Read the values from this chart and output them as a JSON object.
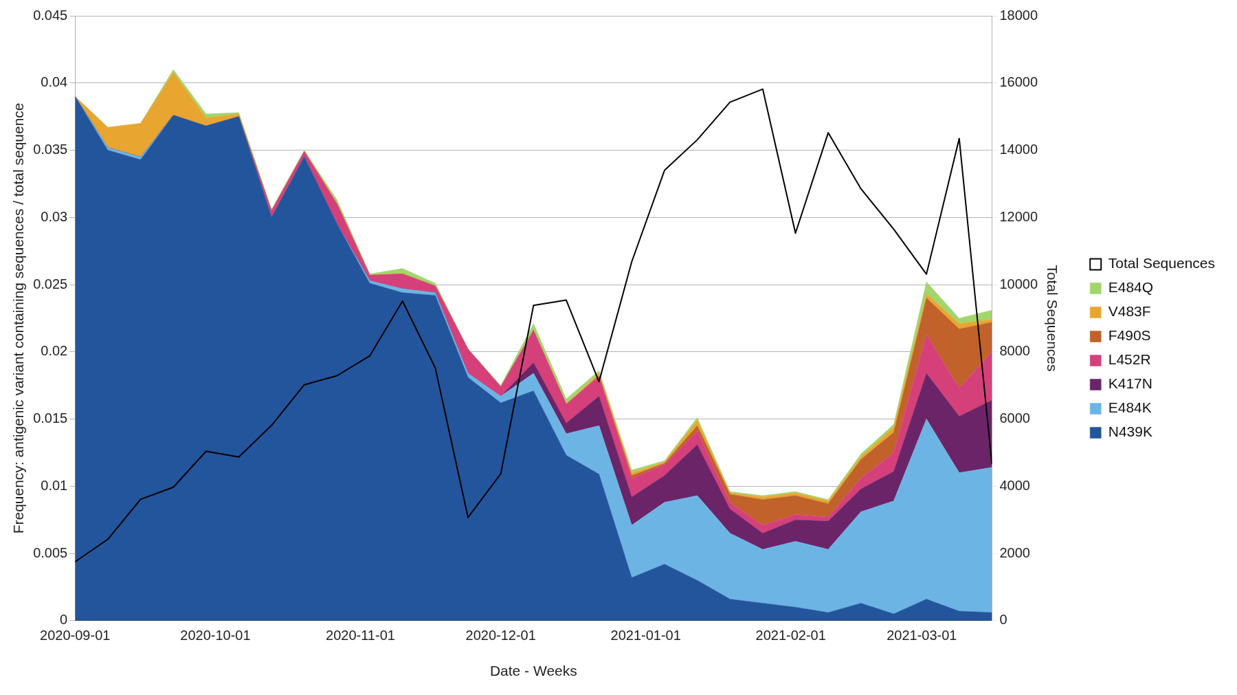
{
  "chart_data": {
    "type": "area",
    "stacked": true,
    "xlabel": "Date - Weeks",
    "ylabel": "Frequency: antigenic variant containing sequences / total sequence",
    "y2label": "Total Sequences",
    "x": [
      "2020-09-01",
      "2020-09-08",
      "2020-09-15",
      "2020-09-22",
      "2020-09-29",
      "2020-10-06",
      "2020-10-13",
      "2020-10-20",
      "2020-10-27",
      "2020-11-03",
      "2020-11-10",
      "2020-11-17",
      "2020-11-24",
      "2020-12-01",
      "2020-12-08",
      "2020-12-15",
      "2020-12-22",
      "2020-12-29",
      "2021-01-05",
      "2021-01-12",
      "2021-01-19",
      "2021-01-26",
      "2021-02-02",
      "2021-02-09",
      "2021-02-16",
      "2021-02-23",
      "2021-03-02",
      "2021-03-09",
      "2021-03-16"
    ],
    "xlim": [
      "2020-09-01",
      "2021-03-16"
    ],
    "xticks": [
      "2020-09-01",
      "2020-10-01",
      "2020-11-01",
      "2020-12-01",
      "2021-01-01",
      "2021-02-01",
      "2021-03-01"
    ],
    "ylim": [
      0,
      0.045
    ],
    "yticks": [
      0,
      0.005,
      0.01,
      0.015,
      0.02,
      0.025,
      0.03,
      0.035,
      0.04,
      0.045
    ],
    "y2lim": [
      0,
      18000
    ],
    "y2ticks": [
      0,
      2000,
      4000,
      6000,
      8000,
      10000,
      12000,
      14000,
      16000,
      18000
    ],
    "grid": "y",
    "legend": "right",
    "series": [
      {
        "name": "N439K",
        "color": "#23559c",
        "values": [
          0.039,
          0.035,
          0.0343,
          0.0376,
          0.0368,
          0.0375,
          0.03,
          0.0345,
          0.0295,
          0.0251,
          0.0244,
          0.0242,
          0.0181,
          0.0162,
          0.0171,
          0.0123,
          0.0109,
          0.0032,
          0.0042,
          0.003,
          0.0016,
          0.0013,
          0.001,
          0.0006,
          0.0013,
          0.0005,
          0.0016,
          0.0007,
          0.0006
        ]
      },
      {
        "name": "E484K",
        "color": "#6cb4e4",
        "values": [
          0,
          0.0002,
          0.0002,
          0,
          0,
          0,
          0,
          0,
          0,
          0.0002,
          0.0003,
          0.0002,
          0.0003,
          0.0005,
          0.0013,
          0.0016,
          0.0036,
          0.0039,
          0.0046,
          0.0063,
          0.0049,
          0.004,
          0.0049,
          0.0047,
          0.0068,
          0.0084,
          0.0134,
          0.0103,
          0.0108
        ]
      },
      {
        "name": "K417N",
        "color": "#6b2468",
        "values": [
          0,
          0,
          0,
          0,
          0,
          0,
          0,
          0,
          0,
          0,
          0,
          0,
          0,
          0,
          0.0008,
          0.0008,
          0.0022,
          0.0021,
          0.002,
          0.0038,
          0.0018,
          0.0012,
          0.0016,
          0.0021,
          0.0017,
          0.0022,
          0.0034,
          0.0042,
          0.005
        ]
      },
      {
        "name": "L452R",
        "color": "#d6407a",
        "values": [
          0,
          0,
          0,
          0,
          0,
          0,
          0.0005,
          0.0004,
          0.0015,
          0.0004,
          0.0011,
          0.0005,
          0.0018,
          0.0007,
          0.0024,
          0.0014,
          0.0015,
          0.0014,
          0.0008,
          0.001,
          0.0005,
          0.0006,
          0.0004,
          0.0003,
          0.0008,
          0.0014,
          0.0029,
          0.0021,
          0.0036
        ]
      },
      {
        "name": "F490S",
        "color": "#c0622a",
        "values": [
          0,
          0,
          0,
          0,
          0,
          0,
          0,
          0,
          0,
          0,
          0,
          0,
          0,
          0,
          0,
          0,
          0,
          0.0002,
          0.0001,
          0.0004,
          0.0006,
          0.0019,
          0.0014,
          0.001,
          0.0014,
          0.0015,
          0.0027,
          0.0044,
          0.0022
        ]
      },
      {
        "name": "V483F",
        "color": "#e8a630",
        "values": [
          0,
          0.0015,
          0.0025,
          0.0032,
          0.0006,
          0.0002,
          0,
          0,
          0,
          0,
          0,
          0,
          0,
          0,
          0,
          0,
          0.0002,
          0.0002,
          0.0001,
          0.0004,
          0.0001,
          0.0002,
          0.0002,
          0.0002,
          0.0002,
          0.0004,
          0.0003,
          0.0004,
          0.0002
        ]
      },
      {
        "name": "E484Q",
        "color": "#a2d56c",
        "values": [
          0,
          0,
          0,
          0.0002,
          0.0003,
          0.0001,
          0.0001,
          0.0001,
          0.0003,
          0.0001,
          0.0004,
          0.0002,
          0,
          0.0001,
          0.0005,
          0.0004,
          0.0002,
          0.0002,
          0.0001,
          0.0002,
          0.0001,
          0.0001,
          0.0001,
          0.0001,
          0.0002,
          0.0002,
          0.0009,
          0.0004,
          0.0007
        ]
      },
      {
        "name": "Total Sequences",
        "type": "line",
        "axis": "y2",
        "color": "#000000",
        "values": [
          1750,
          2420,
          3610,
          3970,
          5040,
          4870,
          5810,
          7020,
          7290,
          7880,
          9510,
          7520,
          3070,
          4370,
          9380,
          9540,
          7110,
          10680,
          13400,
          14310,
          15430,
          15820,
          11530,
          14520,
          12850,
          11650,
          10310,
          14350,
          4660
        ]
      }
    ]
  }
}
